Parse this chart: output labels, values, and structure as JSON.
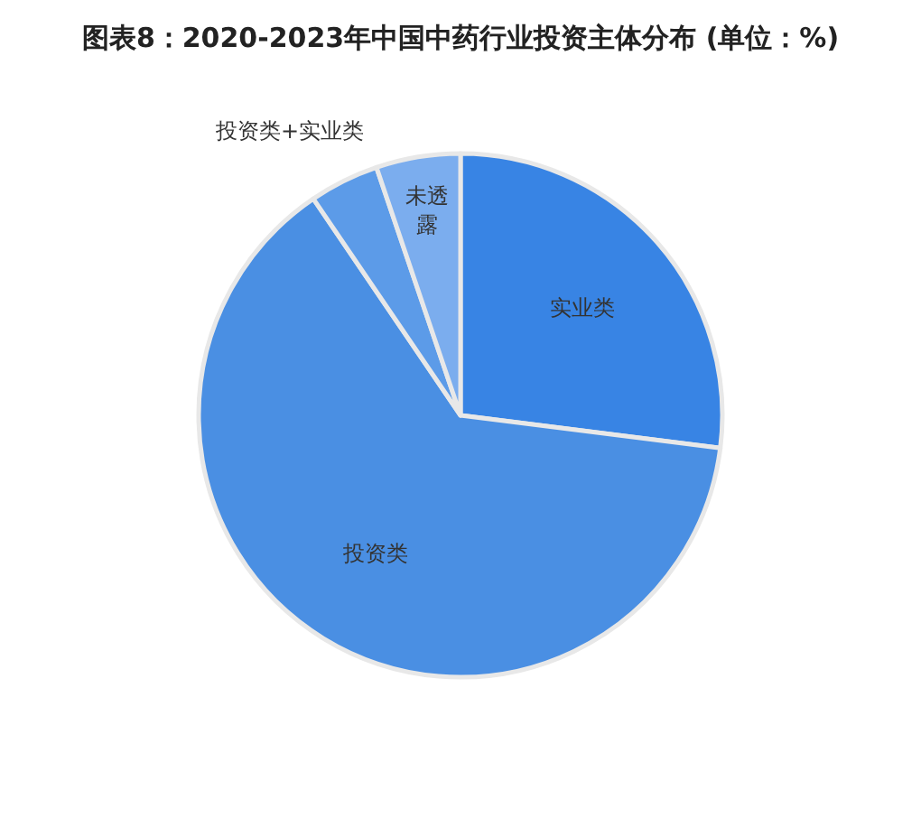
{
  "chart_data": {
    "type": "pie",
    "title": "图表8：2020-2023年中国中药行业投资主体分布 (单位：%)",
    "categories": [
      "实业类",
      "投资类",
      "投资类+实业类",
      "未透露"
    ],
    "values": [
      27,
      63.5,
      4.3,
      5.2
    ],
    "colors": [
      "#3884e4",
      "#4a8fe3",
      "#5c9be8",
      "#7badee"
    ]
  }
}
